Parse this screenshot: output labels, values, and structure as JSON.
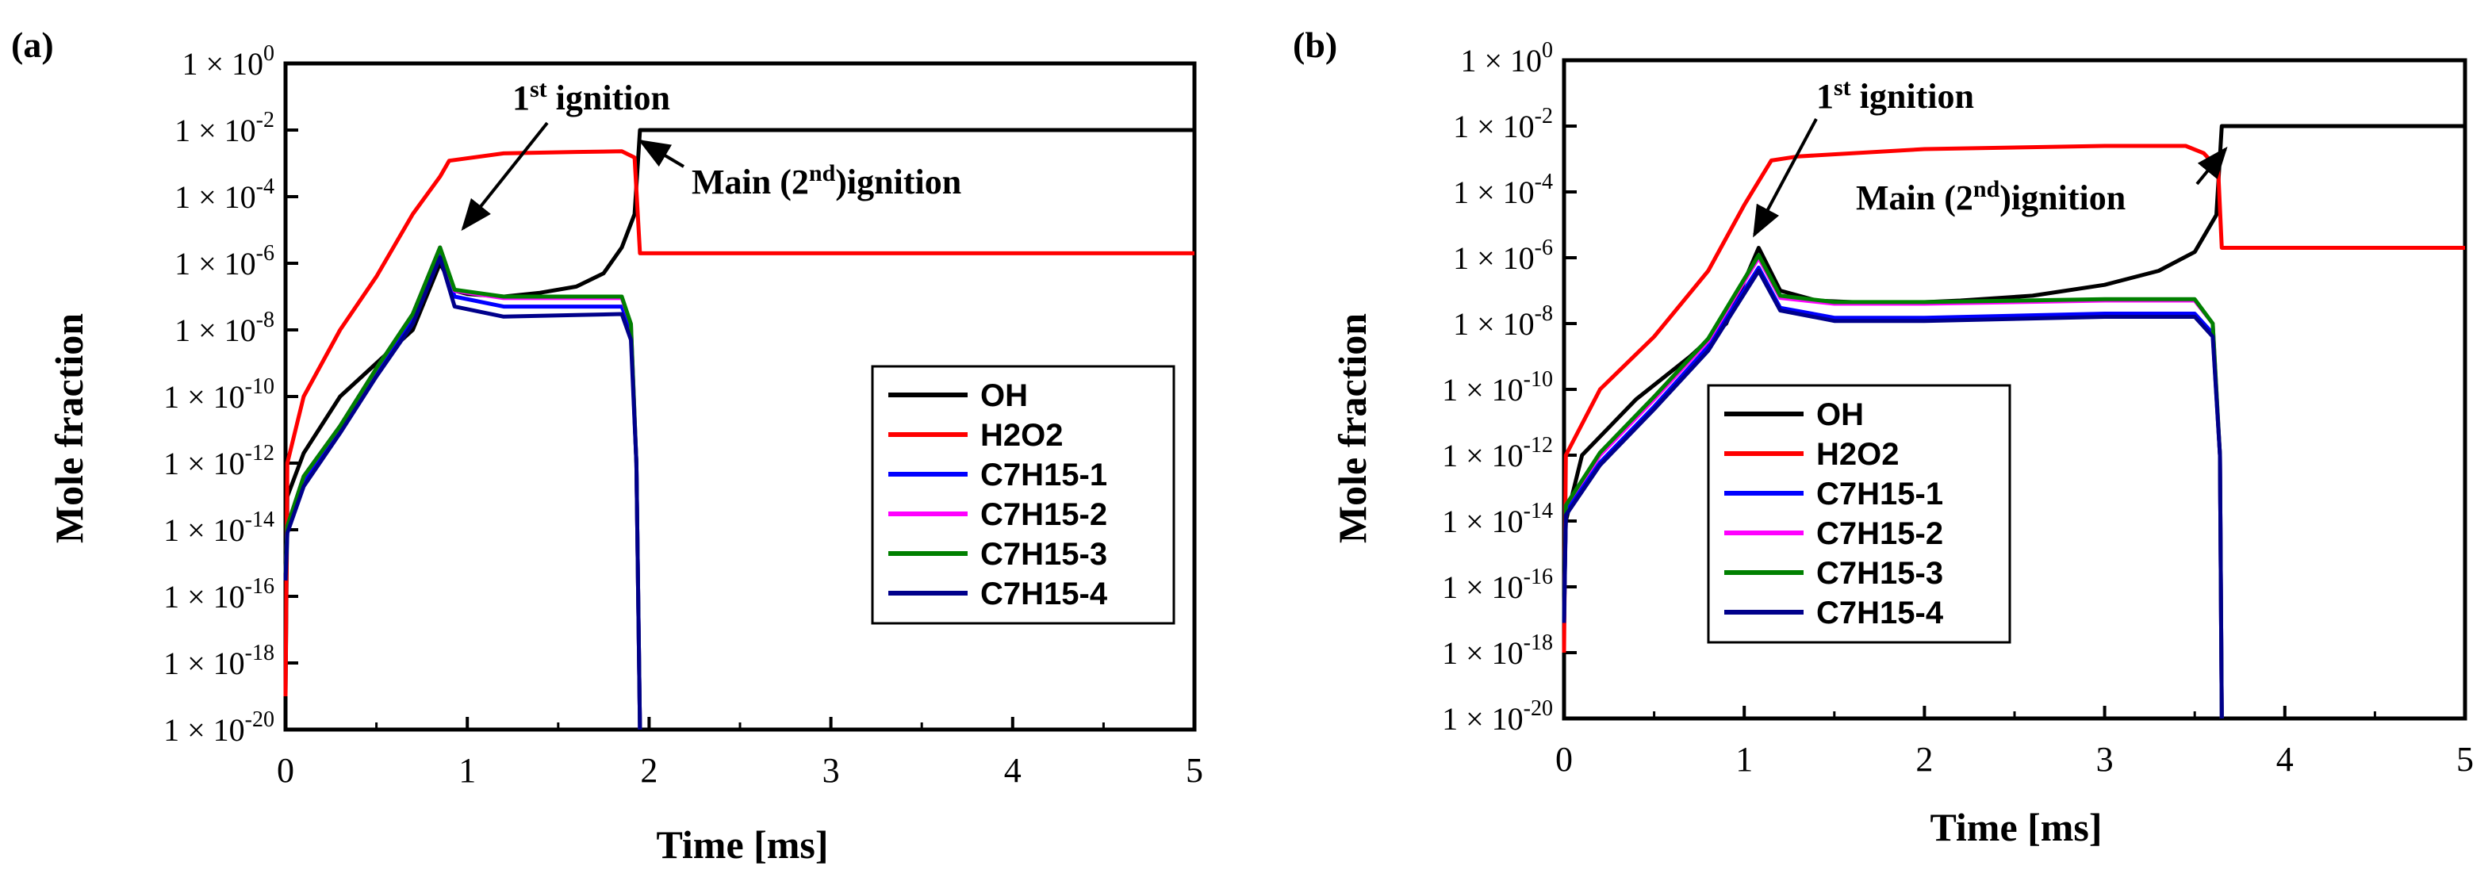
{
  "chart_data": [
    {
      "panel_label": "(a)",
      "type": "line",
      "xlabel": "Time [ms]",
      "ylabel": "Mole fraction",
      "yscale": "log",
      "xlim": [
        0,
        5
      ],
      "ylim": [
        1e-20,
        1
      ],
      "x_ticks": [
        "0",
        "1",
        "2",
        "3",
        "4",
        "5"
      ],
      "y_tick_base": "1 × 10",
      "y_tick_exps": [
        "-20",
        "-18",
        "-16",
        "-14",
        "-12",
        "-10",
        "-8",
        "-6",
        "-4",
        "-2",
        "0"
      ],
      "grid": false,
      "legend_position": "right",
      "annotations": [
        {
          "main": "1",
          "sup": "st",
          "rest": " ignition"
        },
        {
          "main": "Main (2",
          "sup": "nd",
          "rest": ")ignition"
        }
      ],
      "series": [
        {
          "name": "OH",
          "color": "#000000",
          "points": [
            [
              0,
              1e-19
            ],
            [
              0.01,
              1e-13
            ],
            [
              0.1,
              2e-12
            ],
            [
              0.3,
              1e-10
            ],
            [
              0.5,
              1e-09
            ],
            [
              0.7,
              1e-08
            ],
            [
              0.85,
              1e-06
            ],
            [
              0.93,
              1.5e-07
            ],
            [
              1.0,
              1.2e-07
            ],
            [
              1.2,
              1e-07
            ],
            [
              1.4,
              1.3e-07
            ],
            [
              1.6,
              2e-07
            ],
            [
              1.75,
              5e-07
            ],
            [
              1.85,
              3e-06
            ],
            [
              1.92,
              3e-05
            ],
            [
              1.95,
              0.01
            ],
            [
              5.0,
              0.01
            ]
          ]
        },
        {
          "name": "H2O2",
          "color": "#ff0000",
          "points": [
            [
              0,
              1e-19
            ],
            [
              0.01,
              1e-12
            ],
            [
              0.1,
              1e-10
            ],
            [
              0.3,
              1e-08
            ],
            [
              0.5,
              4e-07
            ],
            [
              0.7,
              3e-05
            ],
            [
              0.85,
              0.0004
            ],
            [
              0.9,
              0.0012
            ],
            [
              1.2,
              0.002
            ],
            [
              1.6,
              0.0022
            ],
            [
              1.85,
              0.0023
            ],
            [
              1.92,
              0.0015
            ],
            [
              1.95,
              2e-06
            ],
            [
              5.0,
              2e-06
            ]
          ]
        },
        {
          "name": "C7H15-1",
          "color": "#0000ff",
          "points": [
            [
              0,
              5e-16
            ],
            [
              0.01,
              1e-14
            ],
            [
              0.1,
              3e-13
            ],
            [
              0.3,
              1e-11
            ],
            [
              0.5,
              5e-10
            ],
            [
              0.7,
              2e-08
            ],
            [
              0.85,
              2e-06
            ],
            [
              0.93,
              1e-07
            ],
            [
              1.2,
              5e-08
            ],
            [
              1.6,
              5e-08
            ],
            [
              1.85,
              5e-08
            ],
            [
              1.9,
              1e-08
            ],
            [
              1.93,
              1e-12
            ],
            [
              1.95,
              1e-20
            ]
          ]
        },
        {
          "name": "C7H15-2",
          "color": "#ff00ff",
          "points": [
            [
              0,
              5e-16
            ],
            [
              0.01,
              1.3e-14
            ],
            [
              0.1,
              4e-13
            ],
            [
              0.3,
              1.3e-11
            ],
            [
              0.5,
              7e-10
            ],
            [
              0.7,
              3e-08
            ],
            [
              0.85,
              3e-06
            ],
            [
              0.93,
              1.5e-07
            ],
            [
              1.2,
              9e-08
            ],
            [
              1.6,
              9e-08
            ],
            [
              1.85,
              9e-08
            ],
            [
              1.9,
              1.5e-08
            ],
            [
              1.93,
              1e-12
            ],
            [
              1.95,
              1e-20
            ]
          ]
        },
        {
          "name": "C7H15-3",
          "color": "#008000",
          "points": [
            [
              0,
              5e-16
            ],
            [
              0.01,
              1.3e-14
            ],
            [
              0.1,
              4e-13
            ],
            [
              0.3,
              1.3e-11
            ],
            [
              0.5,
              7e-10
            ],
            [
              0.7,
              3e-08
            ],
            [
              0.85,
              3e-06
            ],
            [
              0.93,
              1.6e-07
            ],
            [
              1.2,
              1e-07
            ],
            [
              1.6,
              1e-07
            ],
            [
              1.85,
              1e-07
            ],
            [
              1.9,
              1.5e-08
            ],
            [
              1.93,
              1e-12
            ],
            [
              1.95,
              1e-20
            ]
          ]
        },
        {
          "name": "C7H15-4",
          "color": "#00008b",
          "points": [
            [
              0,
              3e-16
            ],
            [
              0.01,
              8e-15
            ],
            [
              0.1,
              2e-13
            ],
            [
              0.3,
              8e-12
            ],
            [
              0.5,
              4e-10
            ],
            [
              0.7,
              1.5e-08
            ],
            [
              0.85,
              1.5e-06
            ],
            [
              0.93,
              5e-08
            ],
            [
              1.2,
              2.5e-08
            ],
            [
              1.6,
              2.8e-08
            ],
            [
              1.85,
              3e-08
            ],
            [
              1.9,
              5e-09
            ],
            [
              1.93,
              1e-12
            ],
            [
              1.95,
              1e-20
            ]
          ]
        }
      ]
    },
    {
      "panel_label": "(b)",
      "type": "line",
      "xlabel": "Time [ms]",
      "ylabel": "Mole fraction",
      "yscale": "log",
      "xlim": [
        0,
        5
      ],
      "ylim": [
        1e-20,
        1
      ],
      "x_ticks": [
        "0",
        "1",
        "2",
        "3",
        "4",
        "5"
      ],
      "y_tick_base": "1 × 10",
      "y_tick_exps": [
        "-20",
        "-18",
        "-16",
        "-14",
        "-12",
        "-10",
        "-8",
        "-6",
        "-4",
        "-2",
        "0"
      ],
      "grid": false,
      "legend_position": "left",
      "annotations": [
        {
          "main": "1",
          "sup": "st",
          "rest": " ignition"
        },
        {
          "main": "Main (2",
          "sup": "nd",
          "rest": ")ignition"
        }
      ],
      "series": [
        {
          "name": "OH",
          "color": "#000000",
          "points": [
            [
              0,
              1e-16
            ],
            [
              0.01,
              1e-14
            ],
            [
              0.1,
              1e-12
            ],
            [
              0.4,
              5e-11
            ],
            [
              0.7,
              1e-09
            ],
            [
              0.9,
              1e-08
            ],
            [
              1.08,
              2e-06
            ],
            [
              1.2,
              1e-07
            ],
            [
              1.4,
              5e-08
            ],
            [
              1.8,
              4e-08
            ],
            [
              2.2,
              5e-08
            ],
            [
              2.6,
              7e-08
            ],
            [
              3.0,
              1.5e-07
            ],
            [
              3.3,
              4e-07
            ],
            [
              3.5,
              1.5e-06
            ],
            [
              3.62,
              2e-05
            ],
            [
              3.65,
              0.01
            ],
            [
              5.0,
              0.01
            ]
          ]
        },
        {
          "name": "H2O2",
          "color": "#ff0000",
          "points": [
            [
              0,
              1e-18
            ],
            [
              0.01,
              1e-12
            ],
            [
              0.2,
              1e-10
            ],
            [
              0.5,
              4e-09
            ],
            [
              0.8,
              4e-07
            ],
            [
              1.0,
              4e-05
            ],
            [
              1.15,
              0.0009
            ],
            [
              1.3,
              0.0012
            ],
            [
              2.0,
              0.002
            ],
            [
              3.0,
              0.0025
            ],
            [
              3.45,
              0.0025
            ],
            [
              3.55,
              0.0015
            ],
            [
              3.63,
              0.0005
            ],
            [
              3.65,
              2e-06
            ],
            [
              5.0,
              2e-06
            ]
          ]
        },
        {
          "name": "C7H15-1",
          "color": "#0000ff",
          "points": [
            [
              0,
              1e-17
            ],
            [
              0.01,
              2e-14
            ],
            [
              0.2,
              6e-13
            ],
            [
              0.5,
              3e-11
            ],
            [
              0.8,
              2e-09
            ],
            [
              1.08,
              5e-07
            ],
            [
              1.2,
              3e-08
            ],
            [
              1.5,
              1.5e-08
            ],
            [
              2.0,
              1.5e-08
            ],
            [
              3.0,
              2e-08
            ],
            [
              3.5,
              2e-08
            ],
            [
              3.6,
              5e-09
            ],
            [
              3.64,
              1e-12
            ],
            [
              3.65,
              1e-20
            ]
          ]
        },
        {
          "name": "C7H15-2",
          "color": "#ff00ff",
          "points": [
            [
              0,
              1e-17
            ],
            [
              0.01,
              3e-14
            ],
            [
              0.2,
              1e-12
            ],
            [
              0.5,
              5e-11
            ],
            [
              0.8,
              3e-09
            ],
            [
              1.08,
              1e-06
            ],
            [
              1.2,
              6e-08
            ],
            [
              1.5,
              4e-08
            ],
            [
              2.0,
              4e-08
            ],
            [
              3.0,
              5e-08
            ],
            [
              3.5,
              5e-08
            ],
            [
              3.6,
              1e-08
            ],
            [
              3.64,
              1e-12
            ],
            [
              3.65,
              1e-20
            ]
          ]
        },
        {
          "name": "C7H15-3",
          "color": "#008000",
          "points": [
            [
              0,
              1e-17
            ],
            [
              0.01,
              3e-14
            ],
            [
              0.2,
              1.2e-12
            ],
            [
              0.5,
              6e-11
            ],
            [
              0.8,
              3.5e-09
            ],
            [
              1.08,
              1.2e-06
            ],
            [
              1.2,
              7e-08
            ],
            [
              1.5,
              4.5e-08
            ],
            [
              2.0,
              4.5e-08
            ],
            [
              3.0,
              5.5e-08
            ],
            [
              3.5,
              5.5e-08
            ],
            [
              3.6,
              1e-08
            ],
            [
              3.64,
              1e-12
            ],
            [
              3.65,
              1e-20
            ]
          ]
        },
        {
          "name": "C7H15-4",
          "color": "#00008b",
          "points": [
            [
              0,
              8e-18
            ],
            [
              0.01,
              1.5e-14
            ],
            [
              0.2,
              5e-13
            ],
            [
              0.5,
              2.5e-11
            ],
            [
              0.8,
              1.5e-09
            ],
            [
              1.08,
              4e-07
            ],
            [
              1.2,
              2.5e-08
            ],
            [
              1.5,
              1.2e-08
            ],
            [
              2.0,
              1.2e-08
            ],
            [
              3.0,
              1.6e-08
            ],
            [
              3.5,
              1.6e-08
            ],
            [
              3.6,
              4e-09
            ],
            [
              3.64,
              1e-12
            ],
            [
              3.65,
              1e-20
            ]
          ]
        }
      ]
    }
  ]
}
